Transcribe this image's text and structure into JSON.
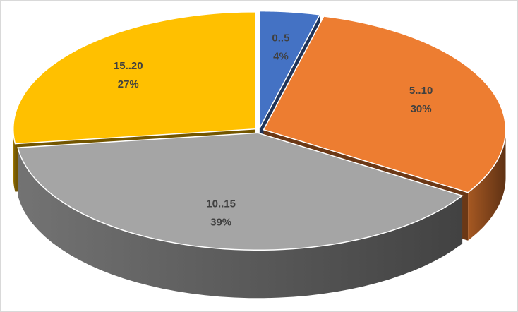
{
  "chart_data": {
    "type": "pie",
    "categories": [
      "0..5",
      "5..10",
      "10..15",
      "15..20"
    ],
    "values": [
      4,
      30,
      39,
      27
    ],
    "value_labels": [
      "4%",
      "30%",
      "39%",
      "27%"
    ],
    "colors": [
      "#4472c4",
      "#ed7d31",
      "#a5a5a5",
      "#ffc000"
    ]
  }
}
